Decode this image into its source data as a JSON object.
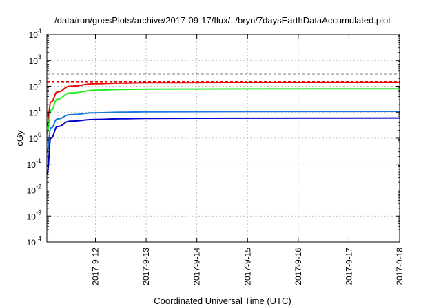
{
  "chart_data": {
    "type": "line",
    "title": "/data/run/goesPlots/archive/2017-09-17/flux/../bryn/7daysEarthDataAccumulated.plot",
    "xlabel": "Coordinated Universal Time (UTC)",
    "ylabel": "cGy",
    "x_ticks": [
      "2017-9-12",
      "2017-9-13",
      "2017-9-14",
      "2017-9-15",
      "2017-9-16",
      "2017-9-17",
      "2017-9-18"
    ],
    "xlim": [
      "2017-09-11 01:00",
      "2017-09-18 00:00"
    ],
    "y_scale": "log",
    "ylim": [
      0.0001,
      10000
    ],
    "y_ticks": [
      {
        "base": "10",
        "exp": "-4"
      },
      {
        "base": "10",
        "exp": "-3"
      },
      {
        "base": "10",
        "exp": "-2"
      },
      {
        "base": "10",
        "exp": "-1"
      },
      {
        "base": "10",
        "exp": "0"
      },
      {
        "base": "10",
        "exp": "1"
      },
      {
        "base": "10",
        "exp": "2"
      },
      {
        "base": "10",
        "exp": "3"
      },
      {
        "base": "10",
        "exp": "4"
      }
    ],
    "grid": true,
    "reference_lines": [
      {
        "y": 300,
        "color": "#000000",
        "style": "dashed"
      },
      {
        "y": 150,
        "color": "#ee0000",
        "style": "dashed"
      }
    ],
    "series": [
      {
        "color": "#ee0000",
        "x": [
          "2017-09-11 01:00",
          "2017-09-11 03:00",
          "2017-09-11 06:00",
          "2017-09-11 12:00",
          "2017-09-12 00:00",
          "2017-09-12 12:00",
          "2017-09-13 00:00",
          "2017-09-15 00:00",
          "2017-09-18 00:00"
        ],
        "y": [
          3,
          25,
          60,
          100,
          125,
          133,
          137,
          140,
          141
        ]
      },
      {
        "color": "#22ee22",
        "x": [
          "2017-09-11 01:00",
          "2017-09-11 03:00",
          "2017-09-11 06:00",
          "2017-09-11 12:00",
          "2017-09-12 00:00",
          "2017-09-12 12:00",
          "2017-09-13 00:00",
          "2017-09-15 00:00",
          "2017-09-18 00:00"
        ],
        "y": [
          1.5,
          12,
          32,
          55,
          70,
          75,
          77,
          79,
          80
        ]
      },
      {
        "color": "#1a7ae0",
        "x": [
          "2017-09-11 01:00",
          "2017-09-11 03:00",
          "2017-09-11 06:00",
          "2017-09-11 12:00",
          "2017-09-12 00:00",
          "2017-09-12 12:00",
          "2017-09-13 00:00",
          "2017-09-15 00:00",
          "2017-09-18 00:00"
        ],
        "y": [
          0.3,
          2.5,
          5.5,
          8,
          9.5,
          10,
          10.3,
          10.6,
          10.8
        ]
      },
      {
        "color": "#0000cc",
        "x": [
          "2017-09-11 01:00",
          "2017-09-11 03:00",
          "2017-09-11 06:00",
          "2017-09-11 12:00",
          "2017-09-12 00:00",
          "2017-09-12 12:00",
          "2017-09-13 00:00",
          "2017-09-15 00:00",
          "2017-09-18 00:00"
        ],
        "y": [
          0.04,
          1,
          2.8,
          4.5,
          5.3,
          5.6,
          5.8,
          5.9,
          6
        ]
      }
    ]
  }
}
